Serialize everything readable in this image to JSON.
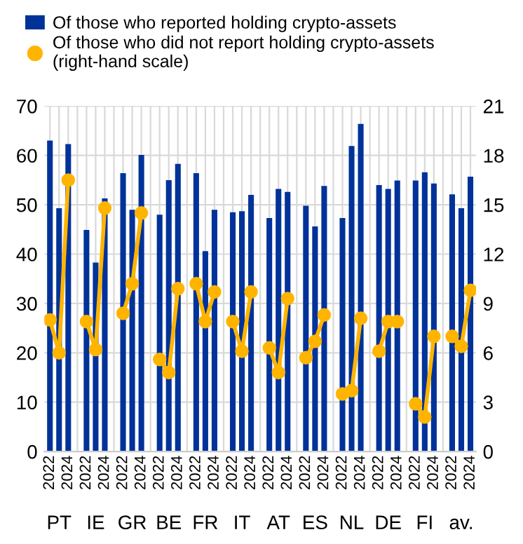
{
  "chart_data": {
    "type": "bar",
    "categories": [
      "2022",
      null,
      "2024",
      null,
      "2022",
      null,
      "2024",
      null,
      "2022",
      null,
      "2024",
      null,
      "2022",
      null,
      "2024",
      null,
      "2022",
      null,
      "2024",
      null,
      "2022",
      null,
      "2024",
      null,
      "2022",
      null,
      "2024",
      null,
      "2022",
      null,
      "2024",
      null,
      "2022",
      null,
      "2024",
      null,
      "2022",
      null,
      "2024",
      null,
      "2022",
      null,
      "2024",
      null,
      "2022",
      null,
      "2024"
    ],
    "series": [
      {
        "name": "Of those who reported holding crypto-assets",
        "color": "#003299",
        "values": [
          63.0,
          49.3,
          62.3,
          null,
          44.9,
          38.3,
          51.3,
          null,
          56.4,
          49.0,
          60.1,
          null,
          48.0,
          55.0,
          58.3,
          null,
          56.4,
          40.6,
          49.0,
          null,
          48.5,
          48.7,
          52.0,
          null,
          47.3,
          53.2,
          52.6,
          null,
          49.8,
          45.6,
          53.8,
          null,
          47.3,
          61.9,
          66.4,
          null,
          54.0,
          53.2,
          54.9,
          null,
          54.9,
          56.6,
          54.3,
          null,
          52.1,
          49.3,
          55.7
        ]
      },
      {
        "name": "Of those who did not report holding crypto-assets (right-hand scale)",
        "type": "line",
        "axis": "y2",
        "color": "#ffb400",
        "values": [
          8.0,
          6.0,
          16.5,
          null,
          7.9,
          6.2,
          14.8,
          null,
          8.4,
          10.2,
          14.5,
          null,
          5.6,
          4.8,
          9.9,
          null,
          10.2,
          7.9,
          9.7,
          null,
          7.9,
          6.1,
          9.7,
          null,
          6.3,
          4.8,
          9.3,
          null,
          5.7,
          6.7,
          8.3,
          null,
          3.5,
          3.7,
          8.1,
          null,
          6.1,
          7.9,
          7.9,
          null,
          2.9,
          2.1,
          7.0,
          null,
          7.0,
          6.4,
          9.8
        ]
      }
    ],
    "annotations": [
      "PT",
      "IE",
      "GR",
      "BE",
      "FR",
      "IT",
      "AT",
      "ES",
      "NL",
      "DE",
      "FI",
      "av."
    ],
    "ylim": [
      0,
      70
    ],
    "yticks": [
      0,
      10,
      20,
      30,
      40,
      50,
      60,
      70
    ],
    "y2lim": [
      0,
      21
    ],
    "y2ticks": [
      0,
      3,
      6,
      9,
      12,
      15,
      18,
      21
    ],
    "grid": true,
    "legend": "top",
    "marker": "circle",
    "line_style": "solid"
  }
}
